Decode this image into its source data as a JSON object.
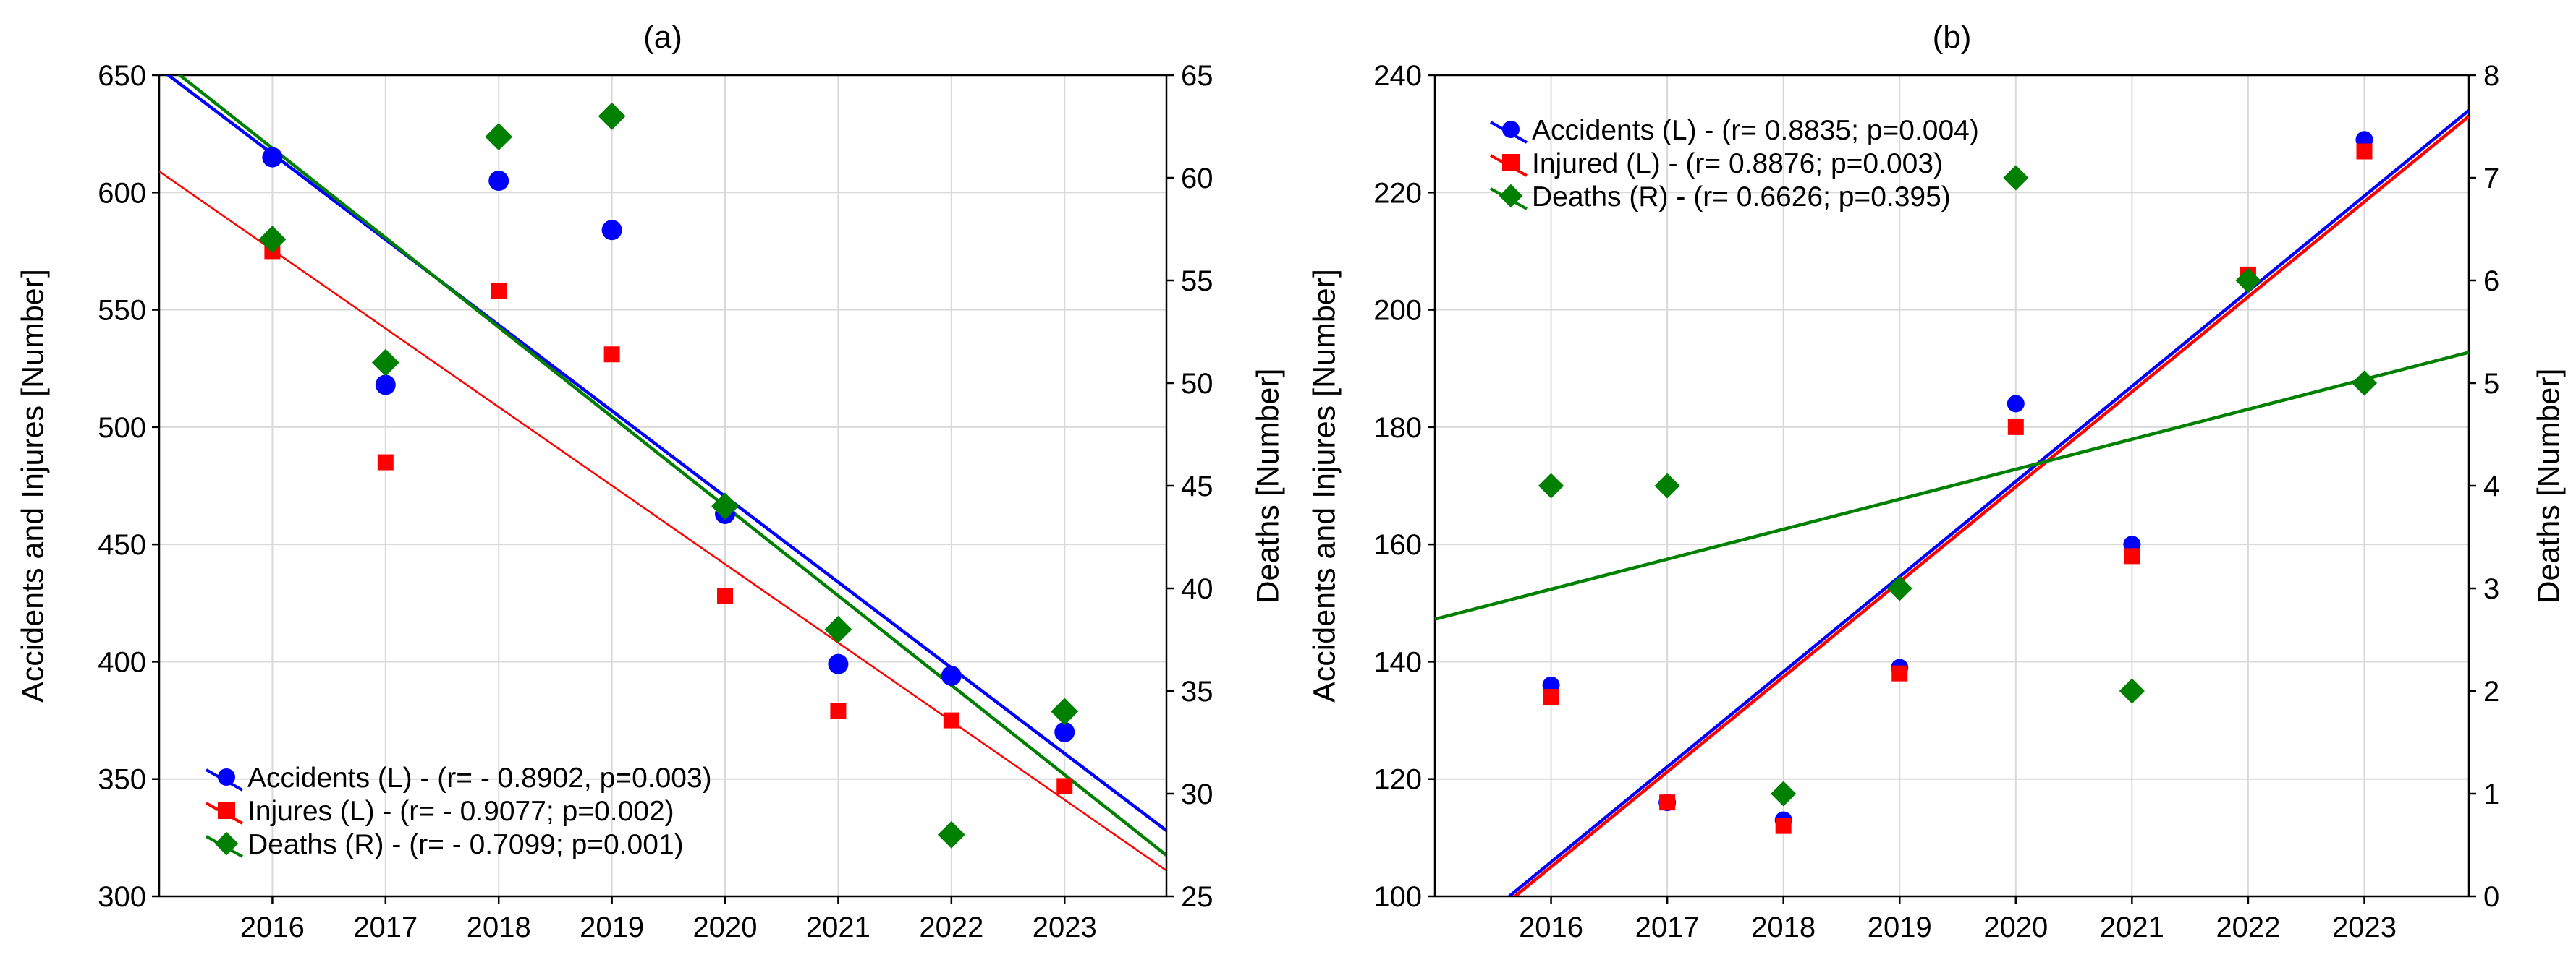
{
  "chart_data": [
    {
      "type": "scatter",
      "title": "(a)",
      "x": [
        2016,
        2017,
        2018,
        2019,
        2020,
        2021,
        2022,
        2023
      ],
      "x_ticks": [
        "2016",
        "2017",
        "2018",
        "2019",
        "2020",
        "2021",
        "2022",
        "2023"
      ],
      "xlim": [
        2015,
        2023.9
      ],
      "ylabel_left": "Accidents and Injures [Number]",
      "ylabel_right": "Deaths [Number]",
      "ylim_left": [
        300,
        650
      ],
      "ylim_right": [
        25,
        65
      ],
      "yticks_left": [
        "300",
        "350",
        "400",
        "450",
        "500",
        "550",
        "600",
        "650"
      ],
      "yticks_right": [
        "25",
        "30",
        "35",
        "40",
        "45",
        "50",
        "55",
        "60",
        "65"
      ],
      "grid": true,
      "legend_position": "bottom-left",
      "series": [
        {
          "name": "Accidents (L) - (r= - 0.8902, p=0.003)",
          "axis": "left",
          "marker": "circle",
          "color": "#0000ff",
          "values": [
            615,
            518,
            605,
            584,
            463,
            399,
            394,
            370
          ],
          "trend": [
            2015,
            653,
            2023.9,
            328
          ]
        },
        {
          "name": "Injures (L) - (r= - 0.9077; p=0.002)",
          "axis": "left",
          "marker": "square",
          "color": "#ff0000",
          "values": [
            575,
            485,
            558,
            531,
            428,
            379,
            375,
            347
          ],
          "trend": [
            2015,
            609,
            2023.9,
            311
          ]
        },
        {
          "name": "Deaths (R) - (r= - 0.7099; p=0.001)",
          "axis": "right",
          "marker": "diamond",
          "color": "#008000",
          "values": [
            57,
            51,
            62,
            63,
            44,
            38,
            28,
            34
          ],
          "trend": [
            2015,
            65.8,
            2023.9,
            27.0
          ]
        }
      ]
    },
    {
      "type": "scatter",
      "title": "(b)",
      "x": [
        2016,
        2017,
        2018,
        2019,
        2020,
        2021,
        2022,
        2023
      ],
      "x_ticks": [
        "2016",
        "2017",
        "2018",
        "2019",
        "2020",
        "2021",
        "2022",
        "2023"
      ],
      "xlim": [
        2015,
        2023.9
      ],
      "ylabel_left": "Accidents and Injures [Number]",
      "ylabel_right": "Deaths [Number]",
      "ylim_left": [
        100,
        240
      ],
      "ylim_right": [
        0,
        8
      ],
      "yticks_left": [
        "100",
        "120",
        "140",
        "160",
        "180",
        "200",
        "220",
        "240"
      ],
      "yticks_right": [
        "0",
        "1",
        "2",
        "3",
        "4",
        "5",
        "6",
        "7",
        "8"
      ],
      "grid": true,
      "legend_position": "top-left",
      "series": [
        {
          "name": "Accidents (L) - (r= 0.8835; p=0.004)",
          "axis": "left",
          "marker": "circle",
          "color": "#0000ff",
          "values": [
            136,
            116,
            113,
            139,
            184,
            160,
            205,
            229
          ],
          "trend": [
            2015.64,
            100,
            2023.9,
            234
          ]
        },
        {
          "name": "Injured (L) - (r= 0.8876; p=0.003)",
          "axis": "left",
          "marker": "square",
          "color": "#ff0000",
          "values": [
            134,
            116,
            112,
            138,
            180,
            158,
            206,
            227
          ],
          "trend": [
            2015.69,
            100,
            2023.9,
            233
          ]
        },
        {
          "name": "Deaths (R) - (r= 0.6626; p=0.395)",
          "axis": "right",
          "marker": "diamond",
          "color": "#008000",
          "values": [
            4,
            4,
            1,
            3,
            7,
            2,
            6,
            5
          ],
          "trend": [
            2015,
            2.7,
            2023.9,
            5.3
          ]
        }
      ]
    }
  ]
}
